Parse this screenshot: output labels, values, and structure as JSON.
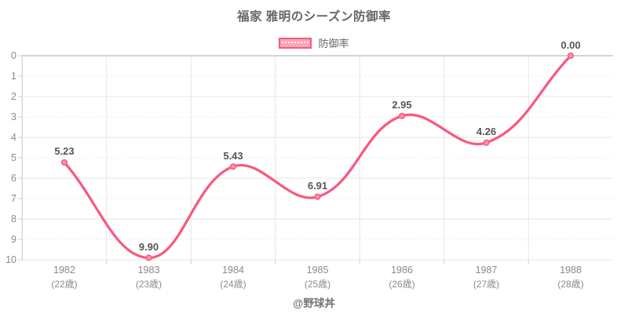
{
  "title": "福家 雅明のシーズン防御率",
  "legend": {
    "label": "防御率"
  },
  "footer": "@野球丼",
  "colors": {
    "line": "#f8587d",
    "point_fill": "#fa92a9",
    "legend_fill": "#fba6ba",
    "grid_major": "#e6e6e6",
    "grid_minor": "#ececec",
    "zero_line": "#a8a8a8",
    "axis_border": "#c9c9c9",
    "tick_mark": "#d2d2d2",
    "value_label": "#565656",
    "axis_label": "#8b8b8b",
    "title_text": "#666666",
    "footer_text": "#757575"
  },
  "chart_data": {
    "type": "line",
    "title": "福家 雅明のシーズン防御率",
    "categories": [
      "1982",
      "1983",
      "1984",
      "1985",
      "1986",
      "1987",
      "1988"
    ],
    "category_sublabels": [
      "(22歳)",
      "(23歳)",
      "(24歳)",
      "(25歳)",
      "(26歳)",
      "(27歳)",
      "(28歳)"
    ],
    "series": [
      {
        "name": "防御率",
        "values": [
          5.23,
          9.9,
          5.43,
          6.91,
          2.95,
          4.26,
          0.0
        ]
      }
    ],
    "value_labels": [
      "5.23",
      "9.90",
      "5.43",
      "6.91",
      "2.95",
      "4.26",
      "0.00"
    ],
    "ylim": [
      0,
      10
    ],
    "y_inverted": true,
    "y_ticks": [
      0,
      1,
      2,
      3,
      4,
      5,
      6,
      7,
      8,
      9,
      10
    ],
    "grid": true,
    "line_smoothing": 0.4,
    "legend_position": "top"
  }
}
